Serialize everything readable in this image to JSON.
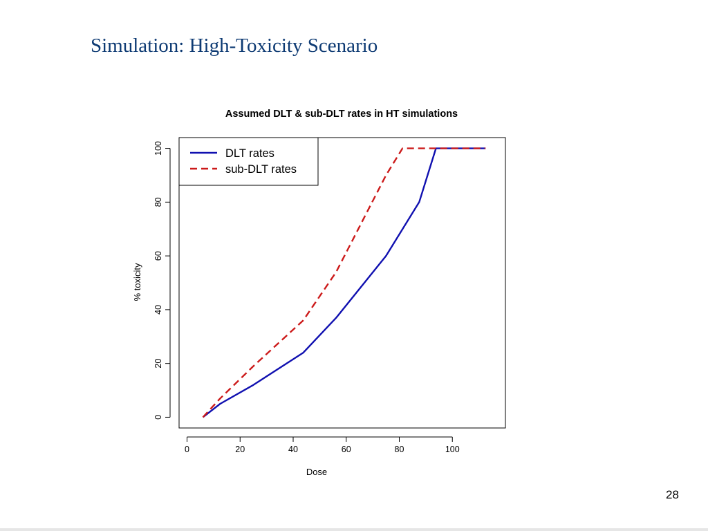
{
  "slide": {
    "title": "Simulation: High-Toxicity Scenario",
    "page_number": "28"
  },
  "chart_data": {
    "type": "line",
    "title": "Assumed DLT & sub-DLT rates in HT simulations",
    "xlabel": "Dose",
    "ylabel": "% toxicity",
    "xlim": [
      -3,
      120
    ],
    "ylim": [
      -4,
      104
    ],
    "xticks": [
      0,
      20,
      40,
      60,
      80,
      100
    ],
    "yticks": [
      0,
      20,
      40,
      60,
      80,
      100
    ],
    "grid": false,
    "legend_position": "top-left",
    "series": [
      {
        "name": "DLT rates",
        "color": "#1010b0",
        "style": "solid",
        "x": [
          6,
          12.5,
          25,
          43.8,
          56.2,
          75,
          87.5,
          93.8,
          112.5
        ],
        "y": [
          0,
          5,
          12,
          24,
          37,
          60,
          80,
          100,
          100
        ]
      },
      {
        "name": "sub-DLT rates",
        "color": "#cc1a1a",
        "style": "dashed",
        "x": [
          6,
          12.5,
          25,
          43.8,
          56.2,
          75,
          81.2,
          93.8,
          112.5
        ],
        "y": [
          0,
          7,
          19,
          36,
          54,
          90,
          100,
          100,
          100
        ]
      }
    ]
  }
}
